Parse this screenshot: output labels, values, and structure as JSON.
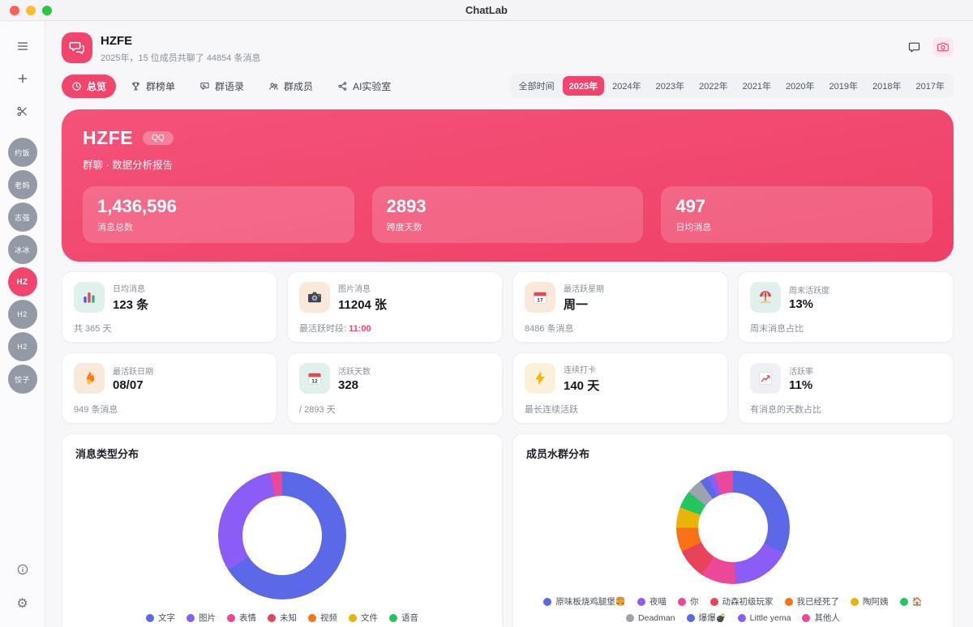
{
  "colors": {
    "accent": "#F2456D"
  },
  "titlebar": {
    "app_title": "ChatLab"
  },
  "sidebar": {
    "avatars": [
      {
        "label": "约饭",
        "active": false
      },
      {
        "label": "老妈",
        "active": false
      },
      {
        "label": "志强",
        "active": false
      },
      {
        "label": "冰冰",
        "active": false
      },
      {
        "label": "HZ",
        "active": true
      },
      {
        "label": "H2",
        "active": false
      },
      {
        "label": "H2",
        "active": false
      },
      {
        "label": "饺子",
        "active": false
      }
    ]
  },
  "header": {
    "title": "HZFE",
    "subtitle": "2025年，15 位成员共聊了 44854 条消息"
  },
  "tabs": [
    {
      "id": "overview",
      "icon": "clock",
      "label": "总览",
      "active": true
    },
    {
      "id": "leaderboard",
      "icon": "trophy",
      "label": "群榜单",
      "active": false
    },
    {
      "id": "quotes",
      "icon": "quote",
      "label": "群语录",
      "active": false
    },
    {
      "id": "members",
      "icon": "members",
      "label": "群成员",
      "active": false
    },
    {
      "id": "ai-lab",
      "icon": "ai",
      "label": "AI实验室",
      "active": false
    }
  ],
  "year_filter": {
    "options": [
      "全部时间",
      "2025年",
      "2024年",
      "2023年",
      "2022年",
      "2021年",
      "2020年",
      "2019年",
      "2018年",
      "2017年"
    ],
    "active_index": 1
  },
  "hero": {
    "title": "HZFE",
    "badge": "QQ",
    "subtitle": "群聊 · 数据分析报告",
    "stats": [
      {
        "value": "1,436,596",
        "label": "消息总数"
      },
      {
        "value": "2893",
        "label": "跨度天数"
      },
      {
        "value": "497",
        "label": "日均消息"
      }
    ]
  },
  "stat_cards": [
    {
      "icon": "bar-chart",
      "icon_bg": "#E0F0ED",
      "label": "日均消息",
      "value": "123 条",
      "footer": "共 365 天"
    },
    {
      "icon": "camera",
      "icon_bg": "#F9E9DB",
      "label": "图片消息",
      "value": "11204 张",
      "footer": "最活跃时段: ",
      "footer_highlight": "11:00"
    },
    {
      "icon": "calendar-17",
      "icon_bg": "#F9E9DB",
      "label": "最活跃星期",
      "value": "周一",
      "footer": "8486 条消息"
    },
    {
      "icon": "beach",
      "icon_bg": "#E0F0ED",
      "label": "周末活跃度",
      "value": "13%",
      "footer": "周末消息占比"
    },
    {
      "icon": "flame",
      "icon_bg": "#F9E9DB",
      "label": "最活跃日期",
      "value": "08/07",
      "footer": "949 条消息"
    },
    {
      "icon": "calendar-12",
      "icon_bg": "#E0F0ED",
      "label": "活跃天数",
      "value": "328",
      "footer": "/ 2893 天"
    },
    {
      "icon": "bolt",
      "icon_bg": "#FBF0D9",
      "label": "连续打卡",
      "value": "140 天",
      "footer": "最长连续活跃"
    },
    {
      "icon": "chart-up",
      "icon_bg": "#EEF0F3",
      "label": "活跃率",
      "value": "11%",
      "footer": "有消息的天数占比"
    }
  ],
  "chart_data": [
    {
      "type": "pie",
      "subtype": "donut",
      "title": "消息类型分布",
      "labels": [
        "文字",
        "图片",
        "表情",
        "未知",
        "视频",
        "文件",
        "语音"
      ],
      "values": [
        66,
        31,
        3,
        0,
        0,
        0,
        0
      ],
      "unit": "%",
      "colors": [
        "#5B68E8",
        "#8B5CF6",
        "#EC4899",
        "#E8435A",
        "#F97316",
        "#EAB308",
        "#22C55E"
      ],
      "legend_position": "bottom"
    },
    {
      "type": "pie",
      "subtype": "donut",
      "title": "成员水群分布",
      "labels": [
        "原味板烧鸡腿堡🍔",
        "夜喵",
        "你",
        "动森初级玩家",
        "我已经死了",
        "陶阿姨",
        "🏠",
        "Deadman",
        "爆爆💣",
        "Little yema",
        "其他人"
      ],
      "values": [
        33,
        17,
        10,
        9,
        7,
        6,
        5,
        4.5,
        2.5,
        2,
        5.5
      ],
      "unit": "%",
      "colors": [
        "#5B68E8",
        "#8B5CF6",
        "#EC4899",
        "#E8435A",
        "#F97316",
        "#EAB308",
        "#22C55E",
        "#9CA3AF",
        "#5B68E8",
        "#8B5CF6",
        "#EC4899"
      ],
      "legend_position": "bottom"
    }
  ]
}
